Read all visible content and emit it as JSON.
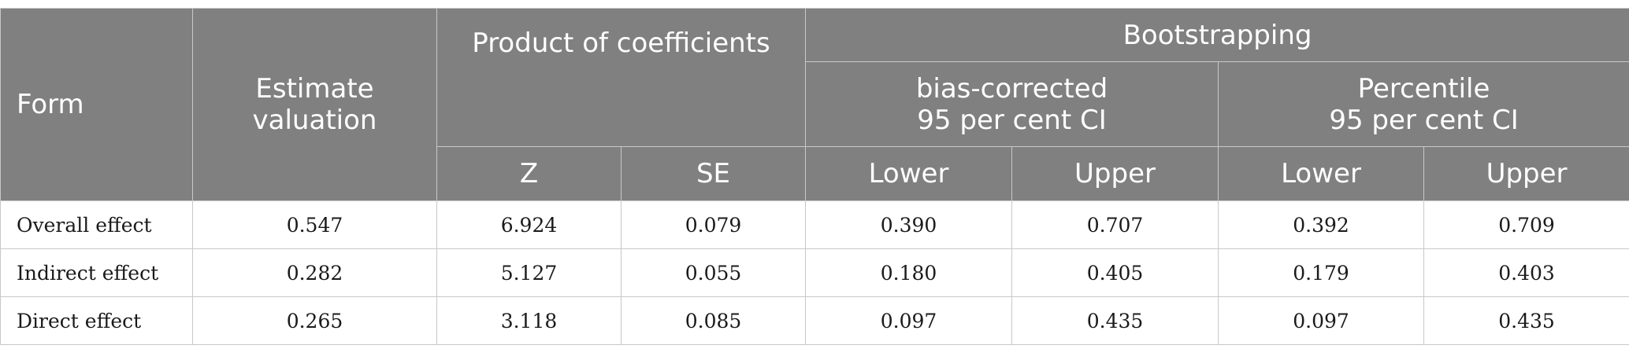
{
  "header": {
    "form": "Form",
    "estimate_line1": "Estimate",
    "estimate_line2": "valuation",
    "product": "Product of coefficients",
    "bootstrapping": "Bootstrapping",
    "bias_line1": "bias-corrected",
    "bias_line2": "95 per cent CI",
    "percentile_line1": "Percentile",
    "percentile_line2": "95 per cent CI",
    "z": "Z",
    "se": "SE",
    "lower1": "Lower",
    "upper1": "Upper",
    "lower2": "Lower",
    "upper2": "Upper"
  },
  "rows": [
    {
      "label": "Overall effect",
      "estimate": "0.547",
      "z": "6.924",
      "se": "0.079",
      "bc_lower": "0.390",
      "bc_upper": "0.707",
      "p_lower": "0.392",
      "p_upper": "0.709"
    },
    {
      "label": "Indirect effect",
      "estimate": "0.282",
      "z": "5.127",
      "se": "0.055",
      "bc_lower": "0.180",
      "bc_upper": "0.405",
      "p_lower": "0.179",
      "p_upper": "0.403"
    },
    {
      "label": "Direct effect",
      "estimate": "0.265",
      "z": "3.118",
      "se": "0.085",
      "bc_lower": "0.097",
      "bc_upper": "0.435",
      "p_lower": "0.097",
      "p_upper": "0.435"
    }
  ],
  "colors": {
    "header_bg": "#808080",
    "header_text": "#ffffff",
    "border": "#c8c8c8"
  }
}
